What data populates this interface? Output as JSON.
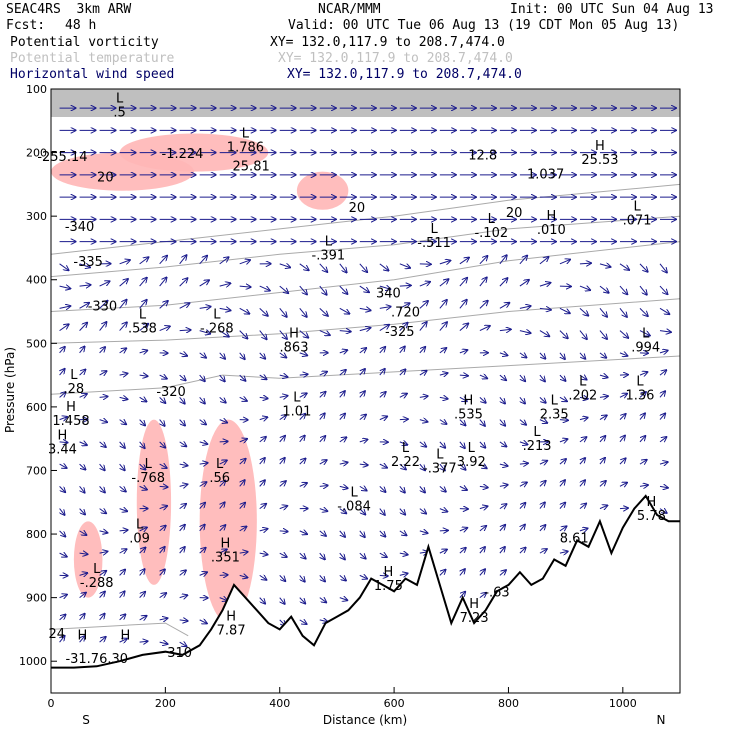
{
  "header": {
    "experiment": "SEAC4RS  3km ARW",
    "org": "NCAR/MMM",
    "init": "Init: 00 UTC Sun 04 Aug 13",
    "fcst_label": "Fcst:",
    "fcst_value": "48 h",
    "valid": "Valid: 00 UTC Tue 06 Aug 13 (19 CDT Mon 05 Aug 13)"
  },
  "fields": [
    {
      "name": "Potential vorticity",
      "xy": "XY= 132.0,117.9 to 208.7,474.0",
      "color": "#000000"
    },
    {
      "name": "Potential temperature",
      "xy": "XY= 132.0,117.9 to 208.7,474.0",
      "color": "#c0c0c0"
    },
    {
      "name": "Horizontal wind speed",
      "xy": "XY= 132.0,117.9 to 208.7,474.0",
      "color": "#000066"
    }
  ],
  "chart_data": {
    "type": "heatmap",
    "xlabel": "Distance (km)",
    "ylabel": "Pressure (hPa)",
    "xlim": [
      0,
      1100
    ],
    "ylim": [
      1050,
      100
    ],
    "xticks": [
      0,
      200,
      400,
      600,
      800,
      1000
    ],
    "yticks": [
      100,
      200,
      300,
      400,
      500,
      600,
      700,
      800,
      900,
      1000
    ],
    "x_end_labels": {
      "left": "S",
      "right": "N"
    },
    "colors": {
      "pv_shade": "#ffb6b6",
      "wind": "#1a1a8c",
      "theta": "#aaaaaa",
      "terrain": "#000000"
    },
    "terrain": [
      [
        0,
        1010
      ],
      [
        40,
        1010
      ],
      [
        80,
        1008
      ],
      [
        120,
        1000
      ],
      [
        160,
        990
      ],
      [
        200,
        985
      ],
      [
        230,
        990
      ],
      [
        260,
        975
      ],
      [
        280,
        950
      ],
      [
        300,
        920
      ],
      [
        320,
        880
      ],
      [
        340,
        900
      ],
      [
        360,
        920
      ],
      [
        380,
        940
      ],
      [
        400,
        950
      ],
      [
        420,
        930
      ],
      [
        440,
        960
      ],
      [
        460,
        975
      ],
      [
        480,
        940
      ],
      [
        500,
        930
      ],
      [
        520,
        920
      ],
      [
        540,
        900
      ],
      [
        560,
        870
      ],
      [
        580,
        880
      ],
      [
        600,
        890
      ],
      [
        620,
        870
      ],
      [
        640,
        880
      ],
      [
        660,
        820
      ],
      [
        680,
        880
      ],
      [
        700,
        940
      ],
      [
        720,
        900
      ],
      [
        740,
        940
      ],
      [
        760,
        920
      ],
      [
        780,
        890
      ],
      [
        800,
        880
      ],
      [
        820,
        860
      ],
      [
        840,
        880
      ],
      [
        860,
        870
      ],
      [
        880,
        840
      ],
      [
        900,
        850
      ],
      [
        920,
        810
      ],
      [
        940,
        820
      ],
      [
        960,
        780
      ],
      [
        980,
        830
      ],
      [
        1000,
        790
      ],
      [
        1020,
        760
      ],
      [
        1040,
        740
      ],
      [
        1060,
        770
      ],
      [
        1080,
        780
      ],
      [
        1100,
        780
      ]
    ],
    "theta_contours": [
      {
        "level": "340",
        "pts": [
          [
            0,
            360
          ],
          [
            200,
            340
          ],
          [
            400,
            320
          ],
          [
            600,
            300
          ],
          [
            800,
            275
          ],
          [
            1100,
            250
          ]
        ]
      },
      {
        "level": "335",
        "pts": [
          [
            0,
            395
          ],
          [
            200,
            380
          ],
          [
            400,
            360
          ],
          [
            600,
            345
          ],
          [
            800,
            320
          ],
          [
            1100,
            300
          ]
        ]
      },
      {
        "level": "330",
        "pts": [
          [
            0,
            450
          ],
          [
            200,
            440
          ],
          [
            400,
            420
          ],
          [
            600,
            400
          ],
          [
            800,
            370
          ],
          [
            1100,
            340
          ]
        ]
      },
      {
        "level": "325",
        "pts": [
          [
            0,
            500
          ],
          [
            200,
            495
          ],
          [
            400,
            485
          ],
          [
            600,
            470
          ],
          [
            800,
            450
          ],
          [
            1100,
            430
          ]
        ]
      },
      {
        "level": "320",
        "pts": [
          [
            0,
            580
          ],
          [
            200,
            570
          ],
          [
            300,
            550
          ],
          [
            400,
            555
          ],
          [
            600,
            545
          ],
          [
            800,
            535
          ],
          [
            1100,
            520
          ]
        ]
      },
      {
        "level": "310",
        "pts": [
          [
            0,
            950
          ],
          [
            100,
            945
          ],
          [
            200,
            940
          ],
          [
            240,
            960
          ]
        ]
      }
    ],
    "pv_regions": [
      {
        "x": [
          120,
          380
        ],
        "p": [
          170,
          230
        ]
      },
      {
        "x": [
          0,
          250
        ],
        "p": [
          200,
          260
        ]
      },
      {
        "x": [
          430,
          520
        ],
        "p": [
          230,
          290
        ]
      },
      {
        "x": [
          150,
          210
        ],
        "p": [
          620,
          880
        ]
      },
      {
        "x": [
          260,
          360
        ],
        "p": [
          620,
          940
        ]
      },
      {
        "x": [
          40,
          90
        ],
        "p": [
          780,
          900
        ]
      }
    ],
    "annotations": [
      {
        "hl": "L",
        "value": ".5",
        "x": 120,
        "p": 140
      },
      {
        "hl": "L",
        "value": "1.786",
        "x": 340,
        "p": 195
      },
      {
        "hl": "",
        "value": "-255.14",
        "x": 20,
        "p": 210
      },
      {
        "hl": "",
        "value": "-1.224",
        "x": 230,
        "p": 205
      },
      {
        "hl": "",
        "value": "25.81",
        "x": 350,
        "p": 225
      },
      {
        "hl": "",
        "value": "20",
        "x": 95,
        "p": 242
      },
      {
        "hl": "",
        "value": "20",
        "x": 535,
        "p": 290
      },
      {
        "hl": "",
        "value": "12.8",
        "x": 755,
        "p": 208
      },
      {
        "hl": "",
        "value": "1.037",
        "x": 865,
        "p": 238
      },
      {
        "hl": "H",
        "value": "25.53",
        "x": 960,
        "p": 215
      },
      {
        "hl": "L",
        "value": ".071",
        "x": 1025,
        "p": 310
      },
      {
        "hl": "H",
        "value": ".010",
        "x": 875,
        "p": 325
      },
      {
        "hl": "L",
        "value": "-.102",
        "x": 770,
        "p": 330
      },
      {
        "hl": "20",
        "value": "",
        "x": 810,
        "p": 320
      },
      {
        "hl": "L",
        "value": "-.511",
        "x": 670,
        "p": 345
      },
      {
        "hl": "L",
        "value": "-.391",
        "x": 485,
        "p": 365
      },
      {
        "hl": "",
        "value": "-340",
        "x": 50,
        "p": 320
      },
      {
        "hl": "",
        "value": "-335",
        "x": 65,
        "p": 375
      },
      {
        "hl": "",
        "value": "-330",
        "x": 90,
        "p": 445
      },
      {
        "hl": "",
        "value": "340",
        "x": 590,
        "p": 425
      },
      {
        "hl": "",
        "value": ".720",
        "x": 620,
        "p": 455
      },
      {
        "hl": "L",
        "value": ".538",
        "x": 160,
        "p": 480
      },
      {
        "hl": "",
        "value": "-325",
        "x": 610,
        "p": 485
      },
      {
        "hl": "L",
        "value": "-.268",
        "x": 290,
        "p": 480
      },
      {
        "hl": "H",
        "value": ".863",
        "x": 425,
        "p": 510
      },
      {
        "hl": "L",
        "value": ".994",
        "x": 1040,
        "p": 510
      },
      {
        "hl": "L",
        "value": ".28",
        "x": 40,
        "p": 575
      },
      {
        "hl": "H",
        "value": "1.458",
        "x": 35,
        "p": 625
      },
      {
        "hl": "H",
        "value": "3.44",
        "x": 20,
        "p": 670
      },
      {
        "hl": "L",
        "value": "1.01",
        "x": 430,
        "p": 610
      },
      {
        "hl": "",
        "value": "-320",
        "x": 210,
        "p": 580
      },
      {
        "hl": "L",
        "value": "1.36",
        "x": 1030,
        "p": 585
      },
      {
        "hl": "L",
        "value": ".202",
        "x": 930,
        "p": 585
      },
      {
        "hl": "L",
        "value": "2.35",
        "x": 880,
        "p": 615
      },
      {
        "hl": "H",
        "value": ".535",
        "x": 730,
        "p": 615
      },
      {
        "hl": "L",
        "value": ".213",
        "x": 850,
        "p": 665
      },
      {
        "hl": "L",
        "value": "2.22",
        "x": 620,
        "p": 690
      },
      {
        "hl": "L",
        "value": "-.377",
        "x": 680,
        "p": 700
      },
      {
        "hl": "L",
        "value": "3.92",
        "x": 735,
        "p": 690
      },
      {
        "hl": "L",
        "value": "-.768",
        "x": 170,
        "p": 715
      },
      {
        "hl": "L",
        "value": ".56",
        "x": 295,
        "p": 715
      },
      {
        "hl": "L",
        "value": "-.084",
        "x": 530,
        "p": 760
      },
      {
        "hl": "H",
        "value": "5.78",
        "x": 1050,
        "p": 775
      },
      {
        "hl": "",
        "value": "8.61",
        "x": 915,
        "p": 810
      },
      {
        "hl": "L",
        "value": ".09",
        "x": 155,
        "p": 810
      },
      {
        "hl": "H",
        "value": ".351",
        "x": 305,
        "p": 840
      },
      {
        "hl": "L",
        "value": "-.288",
        "x": 80,
        "p": 880
      },
      {
        "hl": "H",
        "value": "1.75",
        "x": 590,
        "p": 885
      },
      {
        "hl": "",
        "value": "-.63",
        "x": 780,
        "p": 895
      },
      {
        "hl": "H",
        "value": "7.87",
        "x": 315,
        "p": 955
      },
      {
        "hl": "H",
        "value": "7.23",
        "x": 740,
        "p": 935
      },
      {
        "hl": "",
        "value": "24",
        "x": 10,
        "p": 960
      },
      {
        "hl": "H",
        "value": "",
        "x": 55,
        "p": 985
      },
      {
        "hl": "H",
        "value": "",
        "x": 130,
        "p": 985
      },
      {
        "hl": "",
        "value": "-31.76.30",
        "x": 80,
        "p": 1000
      },
      {
        "hl": "",
        "value": "310",
        "x": 225,
        "p": 990
      }
    ]
  }
}
